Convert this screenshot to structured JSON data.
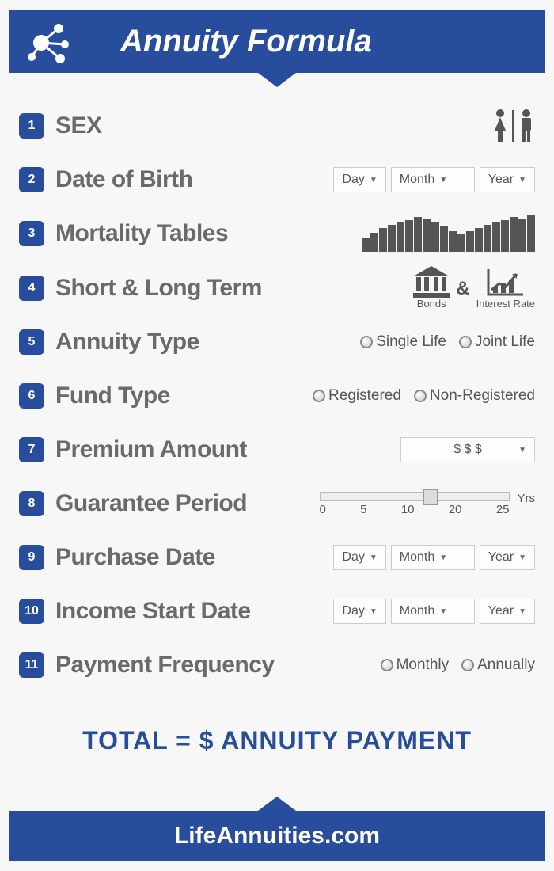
{
  "header": {
    "title": "Annuity Formula"
  },
  "rows": [
    {
      "num": "1",
      "label": "SEX"
    },
    {
      "num": "2",
      "label": "Date of Birth"
    },
    {
      "num": "3",
      "label": "Mortality Tables"
    },
    {
      "num": "4",
      "label": "Short & Long Term"
    },
    {
      "num": "5",
      "label": "Annuity Type"
    },
    {
      "num": "6",
      "label": "Fund Type"
    },
    {
      "num": "7",
      "label": "Premium Amount"
    },
    {
      "num": "8",
      "label": "Guarantee Period"
    },
    {
      "num": "9",
      "label": "Purchase Date"
    },
    {
      "num": "10",
      "label": "Income Start Date"
    },
    {
      "num": "11",
      "label": "Payment Frequency"
    }
  ],
  "date_fields": {
    "day": "Day",
    "month": "Month",
    "year": "Year"
  },
  "mortality_bars": [
    18,
    24,
    30,
    34,
    38,
    40,
    44,
    42,
    38,
    32,
    26,
    22,
    26,
    30,
    34,
    38,
    40,
    44,
    42,
    46
  ],
  "bonds": {
    "label": "Bonds",
    "interest_label": "Interest Rate",
    "amp": "&"
  },
  "annuity_type": {
    "opt1": "Single Life",
    "opt2": "Joint Life"
  },
  "fund_type": {
    "opt1": "Registered",
    "opt2": "Non-Registered"
  },
  "premium": {
    "placeholder": "$ $ $"
  },
  "guarantee": {
    "ticks": [
      "0",
      "5",
      "10",
      "20",
      "25"
    ],
    "unit": "Yrs",
    "thumb_pct": 55
  },
  "payment_freq": {
    "opt1": "Monthly",
    "opt2": "Annually"
  },
  "total": "TOTAL = $ ANNUITY PAYMENT",
  "footer": "LifeAnnuities.com",
  "colors": {
    "brand": "#274d9c",
    "text_grey": "#6a6a6a",
    "icon_grey": "#555555",
    "bg": "#f7f7f7",
    "dropdown_border": "#cccccc"
  }
}
